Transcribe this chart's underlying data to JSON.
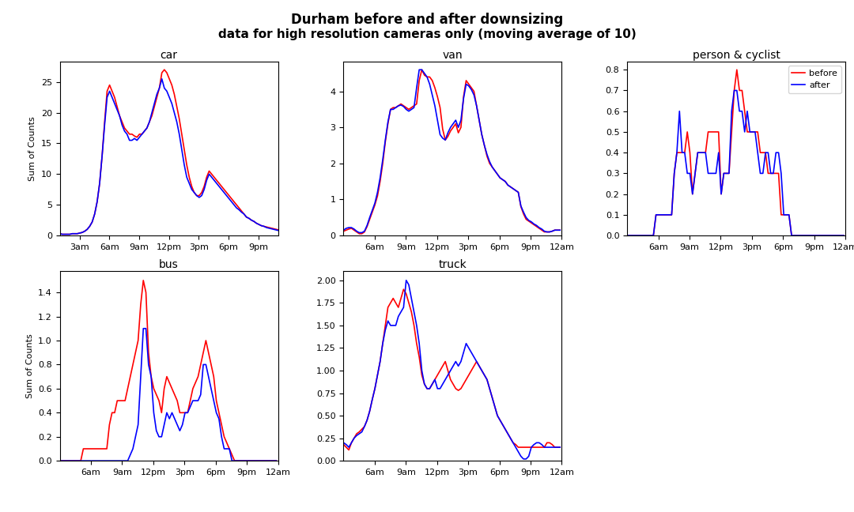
{
  "title_line1": "Durham before and after downsizing",
  "title_line2": "data for high resolution cameras only (moving average of 10)",
  "title_fontsize": 12,
  "ylabel": "Sum of Counts",
  "line_before_color": "#ff0000",
  "line_after_color": "#0000ff",
  "line_width": 1.2,
  "car_before": [
    0.8,
    0.7,
    0.5,
    0.4,
    0.3,
    0.2,
    0.2,
    0.2,
    0.2,
    0.3,
    0.3,
    0.3,
    0.4,
    0.5,
    0.7,
    1.0,
    1.5,
    2.2,
    3.5,
    5.5,
    8.5,
    13.0,
    18.5,
    23.5,
    24.5,
    23.5,
    22.5,
    21.0,
    19.5,
    18.5,
    17.5,
    17.0,
    16.5,
    16.5,
    16.2,
    16.0,
    16.5,
    16.5,
    17.0,
    17.5,
    18.5,
    19.5,
    21.0,
    22.5,
    24.0,
    26.5,
    27.0,
    26.5,
    25.5,
    24.5,
    23.0,
    21.0,
    19.0,
    16.5,
    14.0,
    11.5,
    9.5,
    8.0,
    7.0,
    6.5,
    6.5,
    7.0,
    8.0,
    9.5,
    10.5,
    10.0,
    9.5,
    9.0,
    8.5,
    8.0,
    7.5,
    7.0,
    6.5,
    6.0,
    5.5,
    5.0,
    4.5,
    4.0,
    3.5,
    3.0,
    2.8,
    2.5,
    2.3,
    2.0,
    1.8,
    1.6,
    1.5,
    1.4,
    1.3,
    1.2,
    1.1,
    1.0,
    0.9,
    0.8,
    0.7,
    0.6
  ],
  "car_after": [
    0.8,
    0.7,
    0.5,
    0.4,
    0.3,
    0.2,
    0.2,
    0.2,
    0.2,
    0.3,
    0.3,
    0.3,
    0.4,
    0.5,
    0.7,
    1.0,
    1.5,
    2.2,
    3.5,
    5.5,
    8.5,
    13.0,
    18.0,
    22.5,
    23.5,
    22.5,
    21.5,
    20.5,
    19.5,
    18.0,
    17.0,
    16.5,
    15.5,
    15.5,
    15.8,
    15.5,
    16.0,
    16.5,
    17.0,
    17.5,
    18.5,
    20.0,
    21.5,
    23.0,
    24.0,
    25.5,
    24.0,
    23.5,
    22.5,
    21.5,
    20.0,
    18.5,
    16.5,
    14.0,
    11.5,
    9.5,
    8.5,
    7.5,
    7.0,
    6.5,
    6.2,
    6.5,
    7.5,
    9.0,
    10.0,
    9.5,
    9.0,
    8.5,
    8.0,
    7.5,
    7.0,
    6.5,
    6.0,
    5.5,
    5.0,
    4.5,
    4.2,
    3.8,
    3.5,
    3.0,
    2.8,
    2.5,
    2.3,
    2.0,
    1.8,
    1.6,
    1.5,
    1.3,
    1.2,
    1.1,
    1.0,
    0.9,
    0.8,
    0.7,
    0.6,
    0.5
  ],
  "van_before": [
    0.0,
    0.0,
    0.0,
    0.0,
    0.0,
    0.0,
    0.05,
    0.1,
    0.15,
    0.15,
    0.12,
    0.1,
    0.12,
    0.15,
    0.18,
    0.2,
    0.15,
    0.1,
    0.05,
    0.05,
    0.1,
    0.25,
    0.45,
    0.65,
    0.85,
    1.1,
    1.5,
    2.0,
    2.6,
    3.1,
    3.5,
    3.55,
    3.55,
    3.6,
    3.65,
    3.6,
    3.55,
    3.5,
    3.55,
    3.6,
    3.65,
    4.3,
    4.6,
    4.45,
    4.4,
    4.4,
    4.3,
    4.1,
    3.85,
    3.55,
    2.95,
    2.65,
    2.75,
    2.9,
    3.0,
    3.1,
    2.85,
    3.0,
    3.85,
    4.3,
    4.2,
    4.1,
    4.0,
    3.6,
    3.2,
    2.8,
    2.5,
    2.2,
    2.0,
    1.9,
    1.8,
    1.7,
    1.6,
    1.55,
    1.5,
    1.4,
    1.35,
    1.3,
    1.25,
    1.2,
    0.8,
    0.6,
    0.45,
    0.4,
    0.35,
    0.3,
    0.25,
    0.2,
    0.15,
    0.1,
    0.1,
    0.1,
    0.12,
    0.15,
    0.15,
    0.15
  ],
  "van_after": [
    0.0,
    0.0,
    0.0,
    0.0,
    0.0,
    0.0,
    0.05,
    0.1,
    0.15,
    0.18,
    0.15,
    0.12,
    0.15,
    0.2,
    0.22,
    0.22,
    0.18,
    0.12,
    0.08,
    0.08,
    0.12,
    0.28,
    0.5,
    0.7,
    0.9,
    1.2,
    1.6,
    2.1,
    2.65,
    3.15,
    3.5,
    3.5,
    3.55,
    3.6,
    3.62,
    3.58,
    3.5,
    3.45,
    3.5,
    3.55,
    4.1,
    4.6,
    4.6,
    4.5,
    4.4,
    4.2,
    3.9,
    3.6,
    3.2,
    2.8,
    2.7,
    2.65,
    2.85,
    3.0,
    3.1,
    3.2,
    3.0,
    3.2,
    3.8,
    4.2,
    4.15,
    4.05,
    3.9,
    3.6,
    3.2,
    2.8,
    2.5,
    2.25,
    2.05,
    1.9,
    1.8,
    1.7,
    1.6,
    1.55,
    1.5,
    1.4,
    1.35,
    1.3,
    1.25,
    1.2,
    0.82,
    0.65,
    0.5,
    0.42,
    0.38,
    0.32,
    0.28,
    0.22,
    0.18,
    0.12,
    0.1,
    0.1,
    0.12,
    0.15,
    0.15,
    0.15
  ],
  "pc_before": [
    0.0,
    0.0,
    0.0,
    0.0,
    0.0,
    0.0,
    0.0,
    0.0,
    0.0,
    0.0,
    0.0,
    0.0,
    0.0,
    0.0,
    0.0,
    0.0,
    0.0,
    0.0,
    0.0,
    0.0,
    0.0,
    0.0,
    0.0,
    0.1,
    0.1,
    0.1,
    0.1,
    0.1,
    0.1,
    0.1,
    0.3,
    0.4,
    0.4,
    0.4,
    0.4,
    0.5,
    0.4,
    0.2,
    0.3,
    0.4,
    0.4,
    0.4,
    0.4,
    0.5,
    0.5,
    0.5,
    0.5,
    0.5,
    0.2,
    0.3,
    0.3,
    0.3,
    0.5,
    0.7,
    0.8,
    0.7,
    0.7,
    0.6,
    0.5,
    0.5,
    0.5,
    0.5,
    0.5,
    0.4,
    0.4,
    0.4,
    0.3,
    0.3,
    0.3,
    0.3,
    0.3,
    0.1,
    0.1,
    0.1,
    0.1,
    0.0,
    0.0,
    0.0,
    0.0,
    0.0,
    0.0,
    0.0,
    0.0,
    0.0,
    0.0,
    0.0,
    0.0,
    0.0,
    0.0,
    0.0,
    0.0,
    0.0,
    0.0,
    0.0,
    0.0,
    0.0
  ],
  "pc_after": [
    0.0,
    0.0,
    0.0,
    0.0,
    0.0,
    0.0,
    0.0,
    0.0,
    0.0,
    0.0,
    0.0,
    0.0,
    0.0,
    0.0,
    0.0,
    0.0,
    0.0,
    0.0,
    0.0,
    0.0,
    0.0,
    0.0,
    0.0,
    0.1,
    0.1,
    0.1,
    0.1,
    0.1,
    0.1,
    0.1,
    0.3,
    0.4,
    0.6,
    0.4,
    0.4,
    0.3,
    0.3,
    0.2,
    0.3,
    0.4,
    0.4,
    0.4,
    0.4,
    0.3,
    0.3,
    0.3,
    0.3,
    0.4,
    0.2,
    0.3,
    0.3,
    0.3,
    0.6,
    0.7,
    0.7,
    0.6,
    0.6,
    0.5,
    0.6,
    0.5,
    0.5,
    0.5,
    0.4,
    0.3,
    0.3,
    0.4,
    0.4,
    0.3,
    0.3,
    0.4,
    0.4,
    0.3,
    0.1,
    0.1,
    0.1,
    0.0,
    0.0,
    0.0,
    0.0,
    0.0,
    0.0,
    0.0,
    0.0,
    0.0,
    0.0,
    0.0,
    0.0,
    0.0,
    0.0,
    0.0,
    0.0,
    0.0,
    0.0,
    0.0,
    0.0,
    0.0
  ],
  "bus_before": [
    0.0,
    0.0,
    0.0,
    0.0,
    0.0,
    0.0,
    0.0,
    0.0,
    0.0,
    0.0,
    0.0,
    0.0,
    0.0,
    0.0,
    0.0,
    0.0,
    0.0,
    0.0,
    0.0,
    0.0,
    0.0,
    0.1,
    0.1,
    0.1,
    0.1,
    0.1,
    0.1,
    0.1,
    0.1,
    0.1,
    0.1,
    0.3,
    0.4,
    0.4,
    0.5,
    0.5,
    0.5,
    0.5,
    0.6,
    0.7,
    0.8,
    0.9,
    1.0,
    1.3,
    1.5,
    1.4,
    0.9,
    0.7,
    0.6,
    0.55,
    0.5,
    0.4,
    0.6,
    0.7,
    0.65,
    0.6,
    0.55,
    0.5,
    0.4,
    0.4,
    0.4,
    0.4,
    0.5,
    0.6,
    0.65,
    0.7,
    0.8,
    0.9,
    1.0,
    0.9,
    0.8,
    0.7,
    0.5,
    0.4,
    0.3,
    0.2,
    0.15,
    0.1,
    0.05,
    0.0,
    0.0,
    0.0,
    0.0,
    0.0,
    0.0,
    0.0,
    0.0,
    0.0,
    0.0,
    0.0,
    0.0,
    0.0,
    0.0,
    0.0,
    0.0,
    0.0
  ],
  "bus_after": [
    0.0,
    0.0,
    0.0,
    0.0,
    0.0,
    0.0,
    0.0,
    0.0,
    0.0,
    0.0,
    0.0,
    0.0,
    0.0,
    0.0,
    0.0,
    0.0,
    0.0,
    0.0,
    0.0,
    0.0,
    0.0,
    0.0,
    0.0,
    0.0,
    0.0,
    0.0,
    0.0,
    0.0,
    0.0,
    0.0,
    0.0,
    0.0,
    0.0,
    0.0,
    0.0,
    0.0,
    0.0,
    0.0,
    0.0,
    0.05,
    0.1,
    0.2,
    0.3,
    0.7,
    1.1,
    1.1,
    0.8,
    0.7,
    0.4,
    0.25,
    0.2,
    0.2,
    0.3,
    0.4,
    0.35,
    0.4,
    0.35,
    0.3,
    0.25,
    0.3,
    0.4,
    0.4,
    0.45,
    0.5,
    0.5,
    0.5,
    0.55,
    0.8,
    0.8,
    0.7,
    0.6,
    0.5,
    0.4,
    0.35,
    0.2,
    0.1,
    0.1,
    0.1,
    0.0,
    0.0,
    0.0,
    0.0,
    0.0,
    0.0,
    0.0,
    0.0,
    0.0,
    0.0,
    0.0,
    0.0,
    0.0,
    0.0,
    0.0,
    0.0,
    0.0,
    0.0
  ],
  "truck_before": [
    0.2,
    0.18,
    0.18,
    0.15,
    0.1,
    0.1,
    0.1,
    0.12,
    0.15,
    0.18,
    0.2,
    0.2,
    0.18,
    0.15,
    0.12,
    0.2,
    0.25,
    0.3,
    0.32,
    0.35,
    0.38,
    0.45,
    0.55,
    0.68,
    0.8,
    0.95,
    1.1,
    1.3,
    1.5,
    1.7,
    1.75,
    1.8,
    1.75,
    1.7,
    1.8,
    1.9,
    1.85,
    1.75,
    1.65,
    1.5,
    1.3,
    1.15,
    0.95,
    0.85,
    0.8,
    0.8,
    0.85,
    0.9,
    0.95,
    1.0,
    1.05,
    1.1,
    1.0,
    0.9,
    0.85,
    0.8,
    0.78,
    0.8,
    0.85,
    0.9,
    0.95,
    1.0,
    1.05,
    1.1,
    1.05,
    1.0,
    0.95,
    0.9,
    0.8,
    0.7,
    0.6,
    0.5,
    0.45,
    0.4,
    0.35,
    0.3,
    0.25,
    0.2,
    0.18,
    0.15,
    0.15,
    0.15,
    0.15,
    0.15,
    0.15,
    0.15,
    0.15,
    0.15,
    0.15,
    0.15,
    0.2,
    0.2,
    0.18,
    0.15,
    0.15,
    0.15
  ],
  "truck_after": [
    0.1,
    0.1,
    0.1,
    0.08,
    0.08,
    0.08,
    0.08,
    0.08,
    0.1,
    0.12,
    0.15,
    0.18,
    0.2,
    0.18,
    0.15,
    0.2,
    0.25,
    0.28,
    0.3,
    0.32,
    0.38,
    0.45,
    0.55,
    0.68,
    0.8,
    0.95,
    1.1,
    1.3,
    1.45,
    1.55,
    1.5,
    1.5,
    1.5,
    1.6,
    1.65,
    1.7,
    2.0,
    1.95,
    1.8,
    1.65,
    1.5,
    1.3,
    1.0,
    0.85,
    0.8,
    0.8,
    0.85,
    0.9,
    0.8,
    0.8,
    0.85,
    0.9,
    0.95,
    1.0,
    1.05,
    1.1,
    1.05,
    1.1,
    1.2,
    1.3,
    1.25,
    1.2,
    1.15,
    1.1,
    1.05,
    1.0,
    0.95,
    0.9,
    0.8,
    0.7,
    0.6,
    0.5,
    0.45,
    0.4,
    0.35,
    0.3,
    0.25,
    0.2,
    0.15,
    0.1,
    0.05,
    0.02,
    0.02,
    0.05,
    0.15,
    0.18,
    0.2,
    0.2,
    0.18,
    0.15,
    0.15,
    0.15,
    0.15,
    0.15,
    0.15,
    0.15
  ]
}
